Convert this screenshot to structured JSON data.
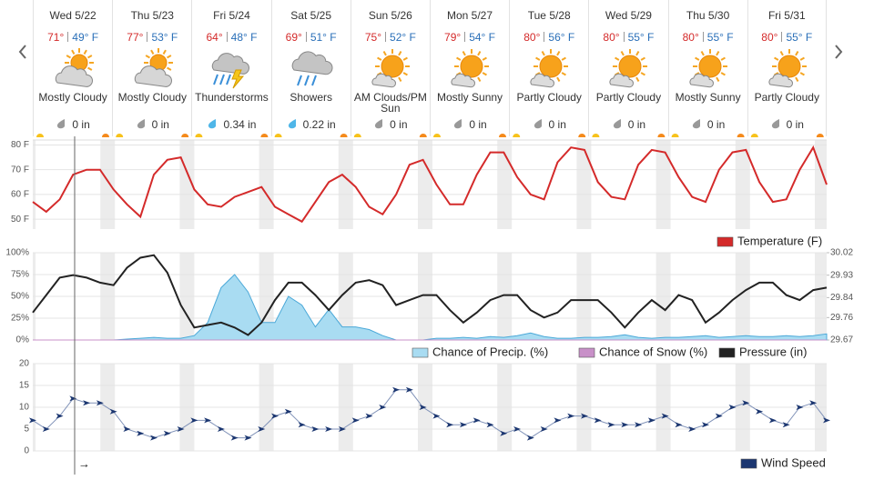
{
  "forecast": [
    {
      "day": "Wed 5/22",
      "hi": "71°",
      "lo": "49° F",
      "condition": "Mostly Cloudy",
      "precip": "0 in"
    },
    {
      "day": "Thu 5/23",
      "hi": "77°",
      "lo": "53° F",
      "condition": "Mostly Cloudy",
      "precip": "0 in"
    },
    {
      "day": "Fri 5/24",
      "hi": "64°",
      "lo": "48° F",
      "condition": "Thunderstorms",
      "precip": "0.34 in"
    },
    {
      "day": "Sat 5/25",
      "hi": "69°",
      "lo": "51° F",
      "condition": "Showers",
      "precip": "0.22 in"
    },
    {
      "day": "Sun 5/26",
      "hi": "75°",
      "lo": "52° F",
      "condition": "AM Clouds/PM Sun",
      "precip": "0 in"
    },
    {
      "day": "Mon 5/27",
      "hi": "79°",
      "lo": "54° F",
      "condition": "Mostly Sunny",
      "precip": "0 in"
    },
    {
      "day": "Tue 5/28",
      "hi": "80°",
      "lo": "56° F",
      "condition": "Partly Cloudy",
      "precip": "0 in"
    },
    {
      "day": "Wed 5/29",
      "hi": "80°",
      "lo": "55° F",
      "condition": "Partly Cloudy",
      "precip": "0 in"
    },
    {
      "day": "Thu 5/30",
      "hi": "80°",
      "lo": "55° F",
      "condition": "Mostly Sunny",
      "precip": "0 in"
    },
    {
      "day": "Fri 5/31",
      "hi": "80°",
      "lo": "55° F",
      "condition": "Partly Cloudy",
      "precip": "0 in"
    }
  ],
  "cursor_label": "→",
  "chart_data": [
    {
      "type": "line",
      "ylim": [
        46,
        82
      ],
      "yticks": [
        {
          "value": 50,
          "label": "50 F"
        },
        {
          "value": 60,
          "label": "60 F"
        },
        {
          "value": 70,
          "label": "70 F"
        },
        {
          "value": 80,
          "label": "80 F"
        }
      ],
      "grid": true,
      "legend": "bottom-right",
      "series": [
        {
          "name": "Temperature (F)",
          "type": "line",
          "color": "#d42a2a",
          "values": [
            57,
            53,
            58,
            68,
            70,
            70,
            62,
            56,
            51,
            68,
            74,
            75,
            62,
            56,
            55,
            59,
            61,
            63,
            55,
            52,
            49,
            57,
            65,
            68,
            63,
            55,
            52,
            60,
            72,
            74,
            64,
            56,
            56,
            68,
            77,
            77,
            67,
            60,
            58,
            73,
            79,
            78,
            65,
            59,
            58,
            72,
            78,
            77,
            67,
            59,
            57,
            70,
            77,
            78,
            65,
            57,
            58,
            70,
            79,
            64
          ]
        }
      ]
    },
    {
      "type": "combo",
      "ylim": [
        0,
        100
      ],
      "yticks": [
        {
          "value": 0,
          "label": "0%"
        },
        {
          "value": 25,
          "label": "25%"
        },
        {
          "value": 50,
          "label": "50%"
        },
        {
          "value": 75,
          "label": "75%"
        },
        {
          "value": 100,
          "label": "100%"
        }
      ],
      "y2lim": [
        29.67,
        30.02
      ],
      "y2ticks": [
        29.67,
        29.76,
        29.84,
        29.93,
        30.02
      ],
      "grid": true,
      "legend": "bottom-right",
      "series": [
        {
          "name": "Chance of Precip. (%)",
          "type": "area",
          "color": "#a9dcf2",
          "values": [
            0,
            0,
            0,
            0,
            0,
            0,
            0,
            1,
            2,
            3,
            2,
            2,
            5,
            20,
            60,
            75,
            55,
            20,
            20,
            50,
            40,
            15,
            35,
            15,
            15,
            12,
            5,
            0,
            0,
            0,
            2,
            2,
            3,
            2,
            4,
            3,
            5,
            8,
            4,
            2,
            2,
            3,
            3,
            4,
            6,
            3,
            2,
            3,
            3,
            4,
            5,
            3,
            4,
            5,
            4,
            4,
            5,
            4,
            5,
            7
          ]
        },
        {
          "name": "Chance of Snow (%)",
          "type": "area",
          "color": "#c890c8",
          "values": [
            0,
            0,
            0,
            0,
            0,
            0,
            0,
            0,
            0,
            0,
            0,
            0,
            0,
            0,
            0,
            0,
            0,
            0,
            0,
            0,
            0,
            0,
            0,
            0,
            0,
            0,
            0,
            0,
            0,
            0,
            0,
            0,
            0,
            0,
            0,
            0,
            0,
            0,
            0,
            0,
            0,
            0,
            0,
            0,
            0,
            0,
            0,
            0,
            0,
            0,
            0,
            0,
            0,
            0,
            0,
            0,
            0,
            0,
            0,
            0
          ]
        },
        {
          "name": "Pressure (in)",
          "type": "line",
          "axis": "y2",
          "color": "#222222",
          "values": [
            29.78,
            29.85,
            29.92,
            29.93,
            29.92,
            29.9,
            29.89,
            29.96,
            30.0,
            30.01,
            29.94,
            29.81,
            29.72,
            29.73,
            29.74,
            29.72,
            29.69,
            29.74,
            29.83,
            29.9,
            29.9,
            29.85,
            29.79,
            29.85,
            29.9,
            29.91,
            29.89,
            29.81,
            29.83,
            29.85,
            29.85,
            29.79,
            29.74,
            29.78,
            29.83,
            29.85,
            29.85,
            29.79,
            29.76,
            29.78,
            29.83,
            29.83,
            29.83,
            29.78,
            29.72,
            29.78,
            29.83,
            29.79,
            29.85,
            29.83,
            29.74,
            29.78,
            29.83,
            29.87,
            29.9,
            29.9,
            29.85,
            29.83,
            29.87,
            29.88
          ]
        }
      ]
    },
    {
      "type": "line",
      "ylim": [
        0,
        20
      ],
      "yticks": [
        0,
        5,
        10,
        15,
        20
      ],
      "grid": true,
      "legend": "bottom-right",
      "series": [
        {
          "name": "Wind Speed",
          "type": "line",
          "markers": true,
          "color": "#1b3670",
          "values": [
            7,
            5,
            8,
            12,
            11,
            11,
            9,
            5,
            4,
            3,
            4,
            5,
            7,
            7,
            5,
            3,
            3,
            5,
            8,
            9,
            6,
            5,
            5,
            5,
            7,
            8,
            10,
            14,
            14,
            10,
            8,
            6,
            6,
            7,
            6,
            4,
            5,
            3,
            5,
            7,
            8,
            8,
            7,
            6,
            6,
            6,
            7,
            8,
            6,
            5,
            6,
            8,
            10,
            11,
            9,
            7,
            6,
            10,
            11,
            7
          ]
        }
      ]
    }
  ]
}
